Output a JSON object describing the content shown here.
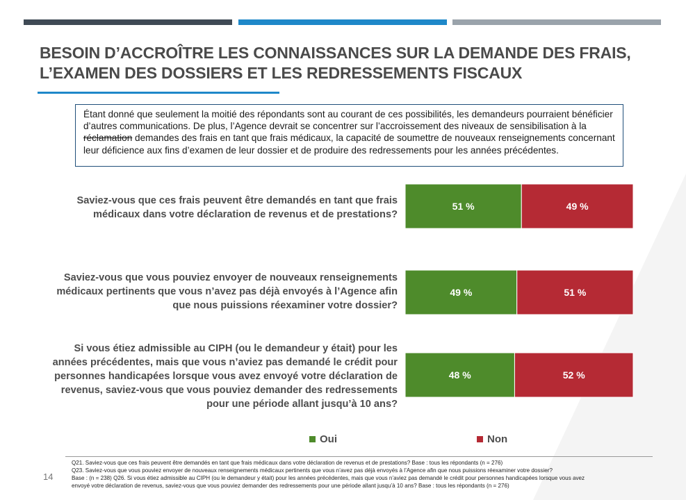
{
  "header": {
    "bars": [
      {
        "color": "#3f4a55"
      },
      {
        "color": "#1e88c9"
      },
      {
        "color": "#9aa3ab"
      }
    ],
    "title": "BESOIN D’ACCROÎTRE LES CONNAISSANCES SUR LA DEMANDE DES FRAIS, L’EXAMEN DES DOSSIERS ET LES REDRESSEMENTS FISCAUX"
  },
  "note": {
    "before": "Étant donné que seulement la moitié des répondants sont au courant de ces possibilités, les demandeurs pourraient bénéficier d’autres communications. De plus, l’Agence devrait se concentrer sur l’accroissement des niveaux de sensibilisation à la ",
    "struck": "réclamation",
    "after": " demandes des frais en tant que frais médicaux, la capacité de soumettre de nouveaux renseignements concernant leur déficience aux fins d’examen de leur dossier et de produire des redressements pour les années précédentes."
  },
  "chart_data": {
    "type": "bar",
    "orientation": "horizontal",
    "stacked": true,
    "percent": true,
    "categories": [
      "Saviez-vous que ces frais peuvent être demandés en tant que frais médicaux dans votre déclaration de revenus et de prestations?",
      "Saviez-vous que vous pouviez envoyer de nouveaux renseignements médicaux pertinents que vous n’avez pas déjà envoyés à l’Agence afin que nous puissions réexaminer votre dossier?",
      "Si vous étiez admissible au CIPH (ou le demandeur y était) pour les années précédentes, mais que vous n’aviez pas demandé le crédit pour personnes handicapées lorsque vous avez envoyé votre déclaration de revenus, saviez-vous que vous pouviez demander des redressements pour une période allant jusqu’à 10 ans?"
    ],
    "series": [
      {
        "name": "Oui",
        "color": "#4e8b2b",
        "values": [
          51,
          49,
          48
        ],
        "labels": [
          "51 %",
          "49 %",
          "48 %"
        ]
      },
      {
        "name": "Non",
        "color": "#b52a34",
        "values": [
          49,
          51,
          52
        ],
        "labels": [
          "49 %",
          "51 %",
          "52 %"
        ]
      }
    ],
    "legend_position": "bottom",
    "xlim": [
      0,
      100
    ]
  },
  "footer": {
    "page_number": "14",
    "notes": [
      "Q21. Saviez-vous que ces frais peuvent être demandés en tant que frais médicaux dans votre déclaration de revenus et de prestations? Base : tous les répondants (n = 276)",
      "Q23. Saviez-vous que vous pouviez envoyer de nouveaux renseignements médicaux pertinents que vous n’avez pas déjà envoyés à l’Agence afin que nous puissions réexaminer votre dossier?",
      "Base : (n = 238) Q26. Si vous étiez admissible au CIPH (ou le demandeur y était) pour les années précédentes, mais que vous n’aviez pas demandé le crédit pour personnes handicapées lorsque vous avez",
      "envoyé votre déclaration de revenus, saviez-vous que vous pouviez demander des redressements pour une période allant jusqu’à 10 ans?  Base : tous les répondants (n = 276)"
    ]
  }
}
